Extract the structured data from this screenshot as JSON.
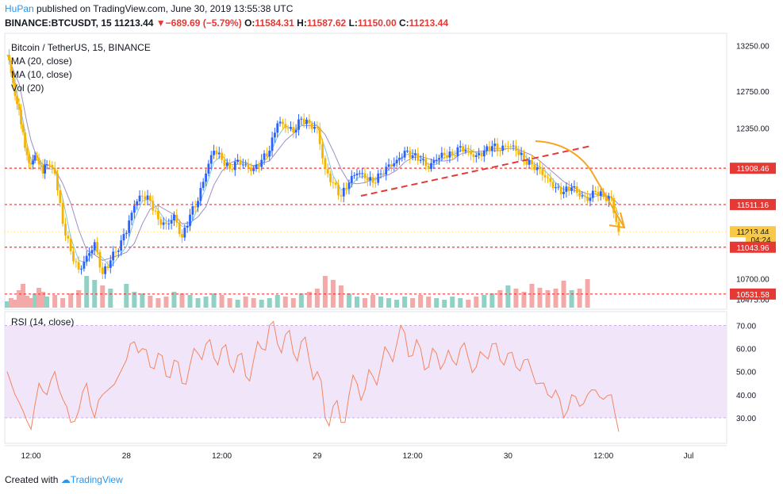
{
  "header": {
    "author": "HuPan",
    "published_text": "published on TradingView.com, June 30, 2019 13:55:38 UTC",
    "symbol": "BINANCE:BTCUSDT, 15",
    "last": "11213.44",
    "change": "−689.69 (−5.79%)",
    "o_label": "O:",
    "o": "11584.31",
    "h_label": "H:",
    "h": "11587.62",
    "l_label": "L:",
    "l": "11150.00",
    "c_label": "C:",
    "c": "11213.44"
  },
  "legend": {
    "title": "Bitcoin / TetherUS, 15, BINANCE",
    "ma20": "MA (20, close)",
    "ma10": "MA (10, close)",
    "vol": "Vol (20)",
    "rsi": "RSI (14, close)"
  },
  "price_axis": {
    "ticks": [
      "13250.00",
      "12750.00",
      "12350.00",
      "10700.00",
      "10475.00"
    ]
  },
  "price_labels": [
    {
      "text": "11908.46",
      "value": 11908.46,
      "color": "#e53935"
    },
    {
      "text": "11511.16",
      "value": 11511.16,
      "color": "#e53935"
    },
    {
      "text": "11213.44",
      "value": 11213.44,
      "color": "#f7c948"
    },
    {
      "text": "04:24",
      "value": 11130,
      "color": "#f7c948"
    },
    {
      "text": "11043.96",
      "value": 11043.96,
      "color": "#e53935"
    },
    {
      "text": "10531.58",
      "value": 10531.58,
      "color": "#e53935"
    }
  ],
  "rsi_axis": {
    "ticks": [
      "70.00",
      "60.00",
      "50.00",
      "40.00",
      "30.00"
    ]
  },
  "time_axis": {
    "ticks": [
      "12:00",
      "28",
      "12:00",
      "29",
      "12:00",
      "30",
      "12:00",
      "Jul"
    ]
  },
  "footer": {
    "created_with": "Created with",
    "brand": "TradingView"
  },
  "colors": {
    "up": "#2962ff",
    "down": "#f5b400",
    "level": "#e53935",
    "ma": "#7b5ea7",
    "rsi": "#f4845f"
  },
  "chart_data": {
    "type": "line",
    "title": "Bitcoin / TetherUS, 15, BINANCE",
    "series": [
      {
        "name": "Bitcoin / TetherUS",
        "points": [
          [
            "27 09:00",
            13150
          ],
          [
            "27 09:30",
            12950
          ],
          [
            "27 10:00",
            12700
          ],
          [
            "27 10:30",
            12550
          ],
          [
            "27 11:00",
            12300
          ],
          [
            "27 11:30",
            12050
          ],
          [
            "27 12:00",
            11950
          ],
          [
            "27 12:30",
            12050
          ],
          [
            "27 13:00",
            11950
          ],
          [
            "27 13:30",
            11850
          ],
          [
            "27 14:00",
            11950
          ],
          [
            "27 15:00",
            11850
          ],
          [
            "27 16:00",
            11300
          ],
          [
            "27 17:00",
            11000
          ],
          [
            "27 18:00",
            10800
          ],
          [
            "27 19:00",
            10950
          ],
          [
            "27 20:00",
            11100
          ],
          [
            "27 21:00",
            10750
          ],
          [
            "27 22:00",
            10900
          ],
          [
            "28 00:00",
            11200
          ],
          [
            "28 01:00",
            11500
          ],
          [
            "28 02:00",
            11600
          ],
          [
            "28 03:00",
            11550
          ],
          [
            "28 04:00",
            11350
          ],
          [
            "28 05:00",
            11300
          ],
          [
            "28 06:00",
            11400
          ],
          [
            "28 07:00",
            11150
          ],
          [
            "28 08:00",
            11400
          ],
          [
            "28 09:00",
            11550
          ],
          [
            "28 10:00",
            11850
          ],
          [
            "28 11:00",
            12100
          ],
          [
            "28 12:00",
            12000
          ],
          [
            "28 13:00",
            11900
          ],
          [
            "28 14:00",
            12000
          ],
          [
            "28 15:00",
            11950
          ],
          [
            "28 16:00",
            11900
          ],
          [
            "28 17:00",
            12000
          ],
          [
            "28 18:00",
            12100
          ],
          [
            "28 19:00",
            12400
          ],
          [
            "28 20:00",
            12350
          ],
          [
            "28 21:00",
            12300
          ],
          [
            "28 22:00",
            12450
          ],
          [
            "28 23:00",
            12400
          ],
          [
            "29 00:00",
            12350
          ],
          [
            "29 01:00",
            11900
          ],
          [
            "29 02:00",
            11750
          ],
          [
            "29 03:00",
            11600
          ],
          [
            "29 04:00",
            11750
          ],
          [
            "29 05:00",
            11850
          ],
          [
            "29 06:00",
            11800
          ],
          [
            "29 07:00",
            11750
          ],
          [
            "29 08:00",
            11850
          ],
          [
            "29 09:00",
            11950
          ],
          [
            "29 10:00",
            12000
          ],
          [
            "29 11:00",
            12100
          ],
          [
            "29 12:00",
            12050
          ],
          [
            "29 13:00",
            12000
          ],
          [
            "29 14:00",
            11900
          ],
          [
            "29 15:00",
            12000
          ],
          [
            "29 16:00",
            12050
          ],
          [
            "29 17:00",
            12050
          ],
          [
            "29 18:00",
            12150
          ],
          [
            "29 19:00",
            12100
          ],
          [
            "29 20:00",
            12050
          ],
          [
            "29 21:00",
            12100
          ],
          [
            "29 22:00",
            12150
          ],
          [
            "29 23:00",
            12100
          ],
          [
            "30 00:00",
            12150
          ],
          [
            "30 01:00",
            12100
          ],
          [
            "30 02:00",
            12000
          ],
          [
            "30 03:00",
            11950
          ],
          [
            "30 04:00",
            11900
          ],
          [
            "30 05:00",
            11800
          ],
          [
            "30 06:00",
            11700
          ],
          [
            "30 07:00",
            11650
          ],
          [
            "30 08:00",
            11700
          ],
          [
            "30 09:00",
            11600
          ],
          [
            "30 10:00",
            11550
          ],
          [
            "30 11:00",
            11650
          ],
          [
            "30 12:00",
            11600
          ],
          [
            "30 13:00",
            11580
          ],
          [
            "30 13:55",
            11213.44
          ]
        ]
      },
      {
        "name": "MA (20, close)"
      },
      {
        "name": "MA (10, close)"
      }
    ],
    "levels": [
      11908.46,
      11511.16,
      11043.96,
      10531.58
    ],
    "last_price": 11213.44,
    "ylim": [
      10400,
      13350
    ],
    "rsi": {
      "name": "RSI (14, close)",
      "ylim": [
        20,
        75
      ],
      "points": [
        [
          "27 09:00",
          50
        ],
        [
          "27 10:00",
          40
        ],
        [
          "27 11:00",
          33
        ],
        [
          "27 12:00",
          25
        ],
        [
          "27 13:00",
          45
        ],
        [
          "27 14:00",
          40
        ],
        [
          "27 15:00",
          50
        ],
        [
          "27 16:00",
          38
        ],
        [
          "27 17:00",
          28
        ],
        [
          "27 18:00",
          33
        ],
        [
          "27 19:00",
          45
        ],
        [
          "27 20:00",
          30
        ],
        [
          "27 21:00",
          40
        ],
        [
          "28 00:00",
          55
        ],
        [
          "28 01:00",
          63
        ],
        [
          "28 02:00",
          60
        ],
        [
          "28 03:00",
          52
        ],
        [
          "28 04:00",
          58
        ],
        [
          "28 05:00",
          48
        ],
        [
          "28 06:00",
          55
        ],
        [
          "28 07:00",
          45
        ],
        [
          "28 08:00",
          53
        ],
        [
          "28 09:00",
          58
        ],
        [
          "28 10:00",
          62
        ],
        [
          "28 11:00",
          56
        ],
        [
          "28 12:00",
          60
        ],
        [
          "28 13:00",
          53
        ],
        [
          "28 14:00",
          57
        ],
        [
          "28 15:00",
          48
        ],
        [
          "28 16:00",
          55
        ],
        [
          "28 17:00",
          60
        ],
        [
          "28 18:00",
          70
        ],
        [
          "28 19:00",
          62
        ],
        [
          "28 20:00",
          66
        ],
        [
          "28 21:00",
          58
        ],
        [
          "28 22:00",
          63
        ],
        [
          "28 23:00",
          55
        ],
        [
          "29 00:00",
          50
        ],
        [
          "29 01:00",
          30
        ],
        [
          "29 02:00",
          35
        ],
        [
          "29 03:00",
          28
        ],
        [
          "29 04:00",
          40
        ],
        [
          "29 05:00",
          45
        ],
        [
          "29 06:00",
          42
        ],
        [
          "29 07:00",
          48
        ],
        [
          "29 08:00",
          52
        ],
        [
          "29 09:00",
          58
        ],
        [
          "29 10:00",
          62
        ],
        [
          "29 11:00",
          67
        ],
        [
          "29 12:00",
          57
        ],
        [
          "29 13:00",
          60
        ],
        [
          "29 14:00",
          52
        ],
        [
          "29 15:00",
          58
        ],
        [
          "29 16:00",
          54
        ],
        [
          "29 17:00",
          55
        ],
        [
          "29 18:00",
          60
        ],
        [
          "29 19:00",
          56
        ],
        [
          "29 20:00",
          52
        ],
        [
          "29 21:00",
          57
        ],
        [
          "29 22:00",
          62
        ],
        [
          "29 23:00",
          55
        ],
        [
          "30 00:00",
          58
        ],
        [
          "30 01:00",
          52
        ],
        [
          "30 02:00",
          55
        ],
        [
          "30 03:00",
          50
        ],
        [
          "30 04:00",
          45
        ],
        [
          "30 05:00",
          40
        ],
        [
          "30 06:00",
          42
        ],
        [
          "30 07:00",
          30
        ],
        [
          "30 08:00",
          40
        ],
        [
          "30 09:00",
          35
        ],
        [
          "30 10:00",
          40
        ],
        [
          "30 11:00",
          42
        ],
        [
          "30 12:00",
          38
        ],
        [
          "30 13:00",
          40
        ],
        [
          "30 13:55",
          24
        ]
      ]
    },
    "volume": [
      8,
      12,
      10,
      22,
      30,
      15,
      12,
      18,
      25,
      20,
      14,
      16,
      12,
      18,
      22,
      40,
      35,
      28,
      24,
      30,
      20,
      18,
      15,
      12,
      14,
      20,
      18,
      16,
      12,
      14,
      18,
      16,
      12,
      10,
      14,
      12,
      10,
      12,
      16,
      14,
      12,
      18,
      20,
      24,
      40,
      35,
      28,
      18,
      14,
      12,
      16,
      14,
      12,
      10,
      14,
      12,
      16,
      14,
      12,
      10,
      14,
      12,
      10,
      14,
      16,
      18,
      22,
      28,
      24,
      20,
      30,
      25,
      22,
      24,
      34,
      22,
      24,
      36
    ]
  }
}
